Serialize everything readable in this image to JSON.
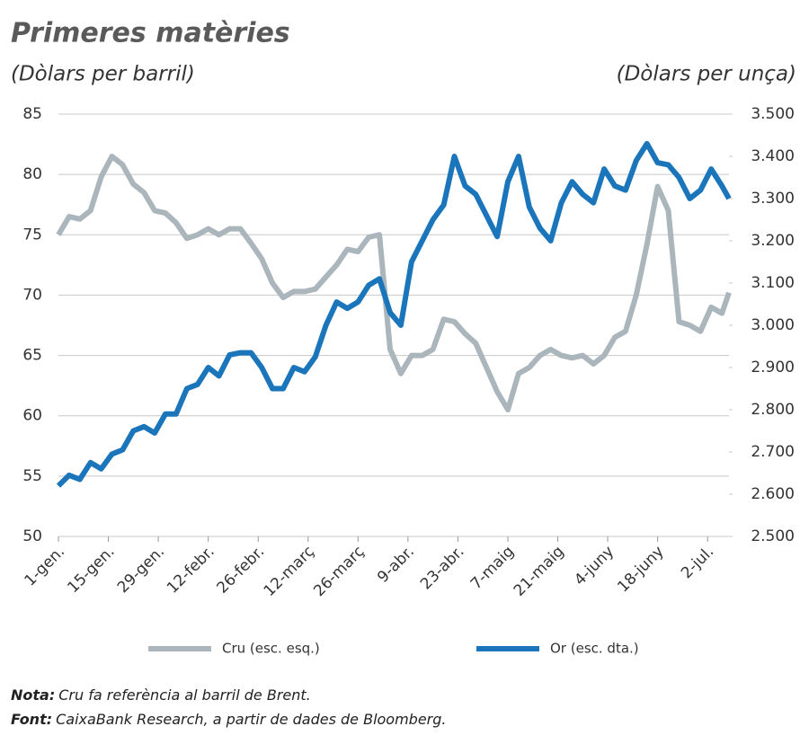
{
  "chart_data": {
    "type": "line",
    "title": "Primeres matèries",
    "y_label": "(Dòlars per barril)",
    "y2_label": "(Dòlars per unça)",
    "x": [
      0,
      3,
      6,
      9,
      12,
      15,
      18,
      21,
      24,
      27,
      30,
      33,
      36,
      39,
      42,
      45,
      48,
      51,
      54,
      57,
      60,
      63,
      66,
      69,
      72,
      75,
      78,
      81,
      84,
      87,
      90,
      93,
      96,
      99,
      102,
      105,
      108,
      111,
      114,
      117,
      120,
      123,
      126,
      129,
      132,
      135,
      138,
      141,
      144,
      147,
      150,
      153,
      156,
      159,
      162,
      165,
      168,
      171,
      174,
      177,
      180,
      183,
      186,
      188
    ],
    "xlim": [
      0,
      188
    ],
    "xticks": [
      {
        "value": 0,
        "label": "1-gen."
      },
      {
        "value": 14,
        "label": "15-gen."
      },
      {
        "value": 28,
        "label": "29-gen."
      },
      {
        "value": 42,
        "label": "12-febr."
      },
      {
        "value": 56,
        "label": "26-febr."
      },
      {
        "value": 70,
        "label": "12-març"
      },
      {
        "value": 84,
        "label": "26-març"
      },
      {
        "value": 98,
        "label": "9-abr."
      },
      {
        "value": 112,
        "label": "23-abr."
      },
      {
        "value": 126,
        "label": "7-maig"
      },
      {
        "value": 140,
        "label": "21-maig"
      },
      {
        "value": 154,
        "label": "4-juny"
      },
      {
        "value": 168,
        "label": "18-juny"
      },
      {
        "value": 182,
        "label": "2-jul."
      }
    ],
    "ylim": [
      50,
      85
    ],
    "yticks": [
      50,
      55,
      60,
      65,
      70,
      75,
      80,
      85
    ],
    "y2lim": [
      2500,
      3500
    ],
    "y2ticks": [
      {
        "value": 2500,
        "label": "2.500"
      },
      {
        "value": 2600,
        "label": "2.600"
      },
      {
        "value": 2700,
        "label": "2.700"
      },
      {
        "value": 2800,
        "label": "2.800"
      },
      {
        "value": 2900,
        "label": "2.900"
      },
      {
        "value": 3000,
        "label": "3.000"
      },
      {
        "value": 3100,
        "label": "3.100"
      },
      {
        "value": 3200,
        "label": "3.200"
      },
      {
        "value": 3300,
        "label": "3.300"
      },
      {
        "value": 3400,
        "label": "3.400"
      },
      {
        "value": 3500,
        "label": "3.500"
      }
    ],
    "grid": true,
    "series": [
      {
        "name": "Cru (esc. esq.)",
        "color": "#aab6bb",
        "values": [
          75,
          76.5,
          76.3,
          77,
          79.8,
          81.5,
          80.8,
          79.2,
          78.5,
          77,
          76.8,
          76,
          74.7,
          75,
          75.5,
          75,
          75.5,
          75.5,
          74.3,
          73,
          71,
          69.8,
          70.3,
          70.3,
          70.5,
          71.5,
          72.5,
          73.8,
          73.6,
          74.8,
          75,
          65.5,
          63.5,
          65,
          65,
          65.5,
          68,
          67.8,
          66.8,
          66,
          64,
          62,
          60.5,
          63.5,
          64,
          65,
          65.5,
          65,
          64.8,
          65,
          64.3,
          65,
          66.5,
          67,
          70,
          74.2,
          79,
          77,
          67.8,
          67.5,
          67,
          69,
          68.5,
          70.2
        ]
      },
      {
        "name": "Or (esc. dta.)",
        "color": "#1a75bb",
        "axis": "y2",
        "values": [
          2620,
          2645,
          2635,
          2675,
          2660,
          2695,
          2705,
          2750,
          2760,
          2745,
          2790,
          2790,
          2850,
          2860,
          2900,
          2880,
          2930,
          2935,
          2935,
          2900,
          2850,
          2850,
          2900,
          2890,
          2925,
          3000,
          3055,
          3040,
          3055,
          3095,
          3110,
          3030,
          3000,
          3150,
          3200,
          3250,
          3285,
          3400,
          3330,
          3310,
          3260,
          3210,
          3340,
          3400,
          3280,
          3230,
          3200,
          3290,
          3340,
          3310,
          3290,
          3370,
          3330,
          3320,
          3390,
          3430,
          3385,
          3380,
          3350,
          3300,
          3320,
          3370,
          3330,
          3300
        ]
      }
    ],
    "notes": [
      {
        "label": "Nota:",
        "text": "Cru fa referència al barril de Brent."
      },
      {
        "label": "Font:",
        "text": "CaixaBank Research, a partir de dades de Bloomberg."
      }
    ]
  }
}
